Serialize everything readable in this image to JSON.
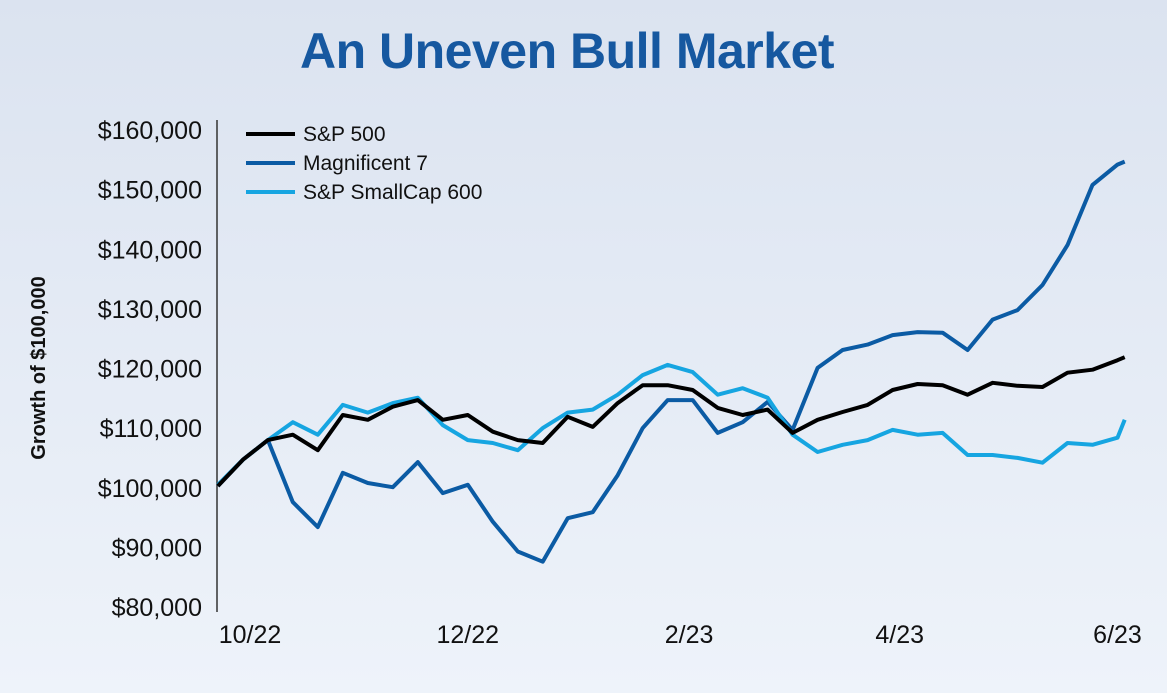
{
  "chart_data": {
    "type": "line",
    "title": "An Uneven Bull Market",
    "xlabel": "",
    "ylabel": "Growth of $100,000",
    "ylim": [
      80000,
      160000
    ],
    "yticks": [
      80000,
      90000,
      100000,
      110000,
      120000,
      130000,
      140000,
      150000,
      160000
    ],
    "ytick_labels": [
      "$80,000",
      "$90,000",
      "$100,000",
      "$110,000",
      "$120,000",
      "$130,000",
      "$140,000",
      "$150,000",
      "$160,000"
    ],
    "xticks": [
      "2022-10-01",
      "2022-12-01",
      "2023-02-01",
      "2023-04-01",
      "2023-06-01"
    ],
    "xtick_labels": [
      "10/22",
      "12/22",
      "2/23",
      "4/23",
      "6/23"
    ],
    "grid": false,
    "legend_position": "top-left",
    "x": [
      "2022-09-22",
      "2022-09-29",
      "2022-10-06",
      "2022-10-13",
      "2022-10-20",
      "2022-10-27",
      "2022-11-03",
      "2022-11-10",
      "2022-11-17",
      "2022-11-24",
      "2022-12-01",
      "2022-12-08",
      "2022-12-15",
      "2022-12-22",
      "2022-12-29",
      "2023-01-05",
      "2023-01-12",
      "2023-01-19",
      "2023-01-26",
      "2023-02-02",
      "2023-02-09",
      "2023-02-16",
      "2023-02-23",
      "2023-03-02",
      "2023-03-09",
      "2023-03-16",
      "2023-03-23",
      "2023-03-30",
      "2023-04-06",
      "2023-04-13",
      "2023-04-20",
      "2023-04-27",
      "2023-05-04",
      "2023-05-11",
      "2023-05-18",
      "2023-05-25",
      "2023-06-01",
      "2023-06-03"
    ],
    "series": [
      {
        "name": "S&P 500",
        "color": "#000000",
        "values": [
          100300,
          104700,
          108000,
          108900,
          106300,
          112200,
          111400,
          113600,
          114700,
          111400,
          112200,
          109400,
          108000,
          107500,
          111900,
          110200,
          114200,
          117200,
          117200,
          116400,
          113400,
          112200,
          113100,
          109200,
          111400,
          112700,
          113900,
          116400,
          117400,
          117200,
          115600,
          117600,
          117100,
          116900,
          119300,
          119800,
          121400,
          121900
        ]
      },
      {
        "name": "Magnificent 7",
        "color": "#0b5ba4",
        "values": [
          100300,
          104700,
          108000,
          97600,
          93400,
          102500,
          100800,
          100100,
          104300,
          99100,
          100500,
          94300,
          89300,
          87600,
          94900,
          95900,
          102100,
          110000,
          114700,
          114700,
          109200,
          111000,
          114400,
          109700,
          120100,
          123100,
          124000,
          125600,
          126100,
          126000,
          123100,
          128200,
          129800,
          134000,
          140700,
          150800,
          154200,
          154700
        ]
      },
      {
        "name": "S&P SmallCap 600",
        "color": "#16a5e1",
        "values": [
          100500,
          104700,
          108000,
          111000,
          108900,
          113900,
          112600,
          114200,
          115100,
          110500,
          108000,
          107500,
          106300,
          110000,
          112600,
          113100,
          115600,
          118900,
          120600,
          119400,
          115600,
          116700,
          115100,
          108900,
          106000,
          107200,
          108000,
          109700,
          108900,
          109200,
          105500,
          105500,
          105000,
          104200,
          107500,
          107200,
          108400,
          111400
        ]
      }
    ]
  }
}
